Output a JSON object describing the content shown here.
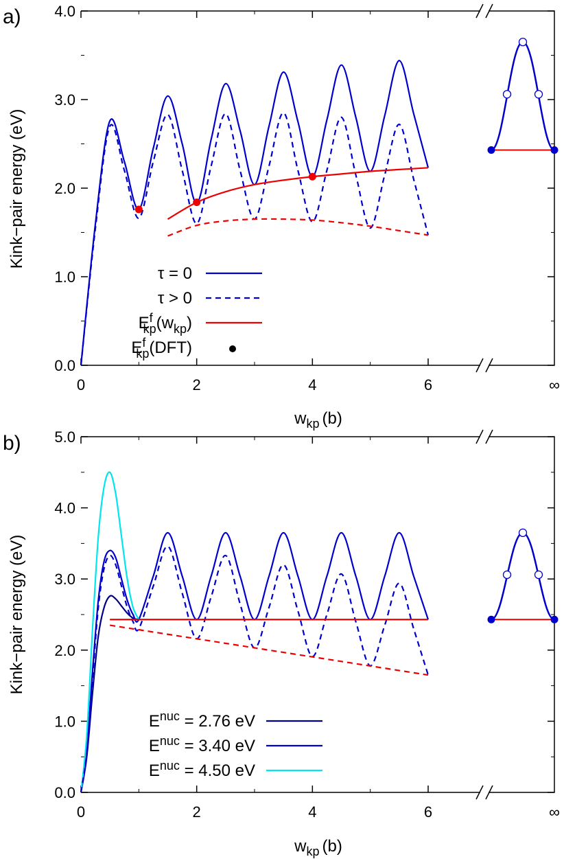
{
  "chart_data": [
    {
      "type": "line",
      "panel_label": "a)",
      "ylabel": "Kink−pair energy (eV)",
      "xlabel_main": "w",
      "xlabel_sub": "kp",
      "xlabel_unit": "(b)",
      "xlim": [
        0,
        6
      ],
      "ylim": [
        0,
        4
      ],
      "xticks": [
        "0",
        "2",
        "4",
        "6"
      ],
      "yticks": [
        "0.0",
        "1.0",
        "2.0",
        "3.0",
        "4.0"
      ],
      "infinity_tick": "∞",
      "legend": [
        {
          "label": "τ = 0",
          "style": "solid",
          "color": "#0000cc"
        },
        {
          "label": "τ > 0",
          "style": "dashed",
          "color": "#0000cc"
        },
        {
          "label_main": "E",
          "label_sup": "f",
          "label_sub": "kp",
          "label_suffix": "(w",
          "label_suffix_sub": "kp",
          "label_end": ")",
          "style": "solid",
          "color": "#ee0000"
        },
        {
          "label_main": "E",
          "label_sup": "f",
          "label_sub": "kp",
          "label_suffix": "(DFT)",
          "style": "dot",
          "color": "#000000"
        }
      ],
      "series": [
        {
          "id": "tau0",
          "x": [
            0,
            0.25,
            0.5,
            0.75,
            1.0,
            1.25,
            1.5,
            1.75,
            2.0,
            2.25,
            2.5,
            2.75,
            3.0,
            3.25,
            3.5,
            3.75,
            4.0,
            4.25,
            4.5,
            4.75,
            5.0,
            5.25,
            5.5,
            5.75,
            6.0
          ],
          "y": [
            0,
            1.6,
            2.76,
            2.3,
            1.76,
            2.45,
            3.04,
            2.5,
            1.83,
            2.55,
            3.18,
            2.65,
            2.04,
            2.7,
            3.31,
            2.75,
            2.13,
            2.77,
            3.39,
            2.8,
            2.19,
            2.82,
            3.44,
            2.84,
            2.23
          ]
        },
        {
          "id": "tau_pos",
          "x": [
            0,
            0.25,
            0.5,
            0.75,
            1.0,
            1.25,
            1.5,
            1.75,
            2.0,
            2.25,
            2.5,
            2.75,
            3.0,
            3.25,
            3.5,
            3.75,
            4.0,
            4.25,
            4.5,
            4.75,
            5.0,
            5.25,
            5.5,
            5.75,
            6.0
          ],
          "y": [
            0,
            1.55,
            2.7,
            2.2,
            1.66,
            2.3,
            2.83,
            2.2,
            1.6,
            2.25,
            2.84,
            2.2,
            1.65,
            2.25,
            2.85,
            2.2,
            1.62,
            2.2,
            2.8,
            2.15,
            1.55,
            2.15,
            2.72,
            2.1,
            1.47
          ]
        },
        {
          "id": "ekp_solid",
          "x": [
            1.5,
            2.0,
            2.5,
            3.0,
            3.5,
            4.0,
            4.5,
            5.0,
            5.5,
            6.0
          ],
          "y": [
            1.65,
            1.84,
            1.96,
            2.04,
            2.09,
            2.13,
            2.16,
            2.19,
            2.21,
            2.23
          ]
        },
        {
          "id": "ekp_dashed",
          "x": [
            1.5,
            2.0,
            2.5,
            3.0,
            3.5,
            4.0,
            4.5,
            5.0,
            5.5,
            6.0
          ],
          "y": [
            1.46,
            1.58,
            1.63,
            1.65,
            1.65,
            1.64,
            1.61,
            1.57,
            1.52,
            1.47
          ]
        }
      ],
      "dft_points": [
        {
          "x": 1.0,
          "y": 1.76
        },
        {
          "x": 2.0,
          "y": 1.84
        },
        {
          "x": 4.0,
          "y": 2.13
        }
      ],
      "inset_baseline": 2.43,
      "inset_peak": 3.65,
      "inset_open_circles_y": [
        3.06,
        3.65,
        3.06
      ]
    },
    {
      "type": "line",
      "panel_label": "b)",
      "ylabel": "Kink−pair energy (eV)",
      "xlabel_main": "w",
      "xlabel_sub": "kp",
      "xlabel_unit": "(b)",
      "xlim": [
        0,
        6
      ],
      "ylim": [
        0,
        5
      ],
      "xticks": [
        "0",
        "2",
        "4",
        "6"
      ],
      "yticks": [
        "0.0",
        "1.0",
        "2.0",
        "3.0",
        "4.0",
        "5.0"
      ],
      "infinity_tick": "∞",
      "legend": [
        {
          "label_main": "E",
          "label_sup": "nuc",
          "label_suffix": " = 2.76 eV",
          "style": "solid",
          "color": "#000088"
        },
        {
          "label_main": "E",
          "label_sup": "nuc",
          "label_suffix": " = 3.40 eV",
          "style": "solid",
          "color": "#0000cc"
        },
        {
          "label_main": "E",
          "label_sup": "nuc",
          "label_suffix": " = 4.50 eV",
          "style": "solid",
          "color": "#00e5ee"
        }
      ],
      "series": [
        {
          "id": "enuc_276",
          "x": [
            0,
            0.1,
            0.2,
            0.3,
            0.4,
            0.5,
            0.6,
            0.7,
            0.8,
            0.9,
            1.0
          ],
          "y": [
            0,
            0.5,
            1.4,
            2.2,
            2.6,
            2.76,
            2.72,
            2.62,
            2.52,
            2.45,
            2.43
          ]
        },
        {
          "id": "enuc_340",
          "x": [
            0,
            0.1,
            0.2,
            0.3,
            0.4,
            0.5,
            0.6,
            0.7,
            0.8,
            0.9,
            1.0,
            1.25,
            1.5,
            1.75,
            2.0,
            2.25,
            2.5,
            2.75,
            3.0,
            3.25,
            3.5,
            3.75,
            4.0,
            4.25,
            4.5,
            4.75,
            5.0,
            5.25,
            5.5,
            5.75,
            6.0
          ],
          "y": [
            0,
            0.6,
            1.7,
            2.7,
            3.25,
            3.4,
            3.3,
            3.0,
            2.7,
            2.5,
            2.43,
            3.04,
            3.65,
            3.04,
            2.43,
            3.04,
            3.65,
            3.04,
            2.43,
            3.04,
            3.65,
            3.04,
            2.43,
            3.04,
            3.65,
            3.04,
            2.43,
            3.04,
            3.65,
            3.04,
            2.43
          ]
        },
        {
          "id": "enuc_450",
          "x": [
            0,
            0.1,
            0.2,
            0.3,
            0.4,
            0.5,
            0.6,
            0.7,
            0.8,
            0.9,
            1.0
          ],
          "y": [
            0,
            0.8,
            2.3,
            3.6,
            4.3,
            4.5,
            4.2,
            3.6,
            3.0,
            2.6,
            2.43
          ]
        },
        {
          "id": "enuc_dashed",
          "x": [
            0,
            0.1,
            0.2,
            0.3,
            0.4,
            0.5,
            0.6,
            0.7,
            0.8,
            0.9,
            1.0,
            1.25,
            1.5,
            1.75,
            2.0,
            2.25,
            2.5,
            2.75,
            3.0,
            3.25,
            3.5,
            3.75,
            4.0,
            4.25,
            4.5,
            4.75,
            5.0,
            5.25,
            5.5,
            5.75,
            6.0
          ],
          "y": [
            0,
            0.55,
            1.6,
            2.6,
            3.15,
            3.33,
            3.2,
            2.9,
            2.6,
            2.4,
            2.3,
            2.9,
            3.46,
            2.8,
            2.16,
            2.75,
            3.33,
            2.65,
            2.03,
            2.6,
            3.2,
            2.55,
            1.91,
            2.5,
            3.07,
            2.4,
            1.78,
            2.35,
            2.94,
            2.3,
            1.65
          ]
        },
        {
          "id": "ekp_solid_b",
          "x": [
            0.5,
            6.0
          ],
          "y": [
            2.43,
            2.43
          ]
        },
        {
          "id": "ekp_dashed_b",
          "x": [
            0.5,
            6.0
          ],
          "y": [
            2.35,
            1.65
          ]
        }
      ],
      "inset_baseline": 2.43,
      "inset_peak": 3.65,
      "inset_open_circles_y": [
        3.06,
        3.65,
        3.06
      ]
    }
  ]
}
